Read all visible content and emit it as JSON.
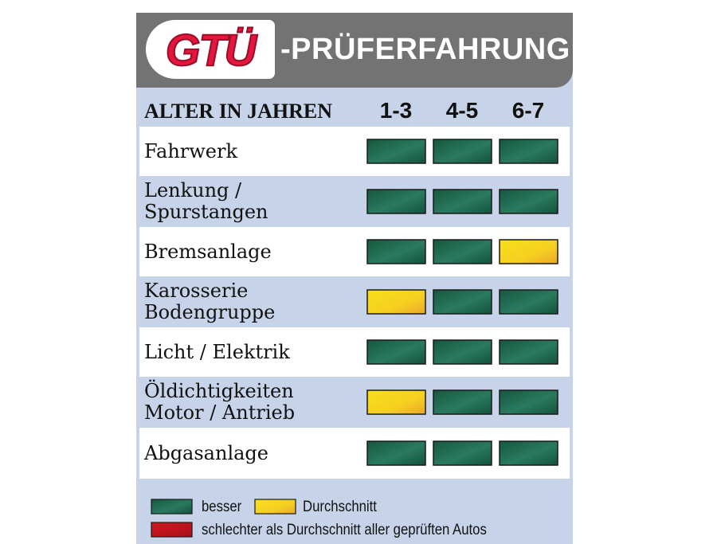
{
  "header": {
    "logo_text": "GTÜ",
    "title": "-PRÜFERFAHRUNG"
  },
  "colors": {
    "green": "#1f6b52",
    "yellow": "#f2cf1e",
    "red": "#c4161c",
    "header_bg": "#737373",
    "panel_bg": "#c7d3e8",
    "logo_red": "#e3163e"
  },
  "chart_data": {
    "type": "table",
    "title": "GTÜ-PRÜFERFAHRUNG",
    "column_header": "ALTER IN JAHREN",
    "categories": [
      "1-3",
      "4-5",
      "6-7"
    ],
    "rows": [
      {
        "label": "Fahrwerk",
        "ratings": [
          "besser",
          "besser",
          "besser"
        ]
      },
      {
        "label": "Lenkung /\nSpurstangen",
        "ratings": [
          "besser",
          "besser",
          "besser"
        ]
      },
      {
        "label": "Bremsanlage",
        "ratings": [
          "besser",
          "besser",
          "Durchschnitt"
        ]
      },
      {
        "label": "Karosserie\nBodengruppe",
        "ratings": [
          "Durchschnitt",
          "besser",
          "besser"
        ]
      },
      {
        "label": "Licht / Elektrik",
        "ratings": [
          "besser",
          "besser",
          "besser"
        ]
      },
      {
        "label": "Öldichtigkeiten\nMotor / Antrieb",
        "ratings": [
          "Durchschnitt",
          "besser",
          "besser"
        ]
      },
      {
        "label": "Abgasanlage",
        "ratings": [
          "besser",
          "besser",
          "besser"
        ]
      }
    ],
    "legend": [
      {
        "key": "besser",
        "label": "besser",
        "color": "#1f6b52"
      },
      {
        "key": "Durchschnitt",
        "label": "Durchschnitt",
        "color": "#f2cf1e"
      },
      {
        "key": "schlechter",
        "label": "schlechter als Durchschnitt aller geprüften Autos",
        "color": "#c4161c"
      }
    ]
  }
}
